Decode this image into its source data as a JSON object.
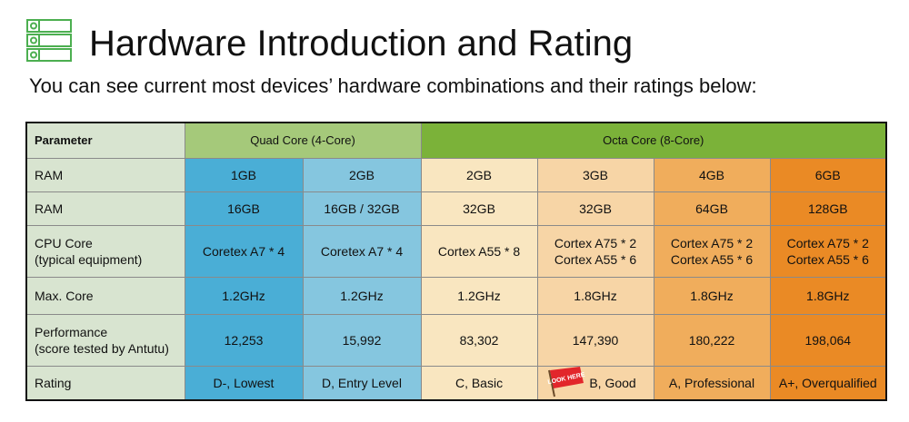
{
  "header": {
    "icon": "server-list-icon",
    "title": "Hardware Introduction and Rating",
    "subtitle": "You can see current most devices’ hardware combinations and their ratings below:"
  },
  "colors": {
    "icon_green": "#4caf50",
    "param_bg": "#d8e4d0",
    "quad_header": "#a5c97a",
    "octa_header": "#7bb239",
    "col_1gb": "#4aaed6",
    "col_2gb_quad": "#85c6df",
    "col_2gb_octa": "#f9e6c0",
    "col_3gb": "#f7d5a6",
    "col_4gb": "#f0ad5c",
    "col_6gb": "#ea8a25",
    "look_here_flag": "#e2262b"
  },
  "table": {
    "parameter_header": "Parameter",
    "groups": {
      "quad": "Quad Core (4-Core)",
      "octa": "Octa Core (8-Core)"
    },
    "look_here_badge": "LOOK HERE",
    "rows": {
      "ram": {
        "label": "RAM",
        "values": [
          "1GB",
          "2GB",
          "2GB",
          "3GB",
          "4GB",
          "6GB"
        ]
      },
      "storage": {
        "label": "RAM",
        "values": [
          "16GB",
          "16GB / 32GB",
          "32GB",
          "32GB",
          "64GB",
          "128GB"
        ]
      },
      "cpu": {
        "label_line1": "CPU Core",
        "label_line2": "(typical equipment)",
        "values": [
          [
            "Coretex A7 * 4"
          ],
          [
            "Coretex A7 * 4"
          ],
          [
            "Cortex A55 * 8"
          ],
          [
            "Cortex A75 * 2",
            "Cortex A55 * 6"
          ],
          [
            "Cortex A75 * 2",
            "Cortex A55 * 6"
          ],
          [
            "Cortex A75 * 2",
            "Cortex A55 * 6"
          ]
        ]
      },
      "max_core": {
        "label": "Max. Core",
        "values": [
          "1.2GHz",
          "1.2GHz",
          "1.2GHz",
          "1.8GHz",
          "1.8GHz",
          "1.8GHz"
        ]
      },
      "performance": {
        "label_line1": "Performance",
        "label_line2": "(score tested by Antutu)",
        "values": [
          "12,253",
          "15,992",
          "83,302",
          "147,390",
          "180,222",
          "198,064"
        ]
      },
      "rating": {
        "label": "Rating",
        "values": [
          "D-, Lowest",
          "D, Entry Level",
          "C, Basic",
          "B, Good",
          "A, Professional",
          "A+, Overqualified"
        ]
      }
    }
  }
}
